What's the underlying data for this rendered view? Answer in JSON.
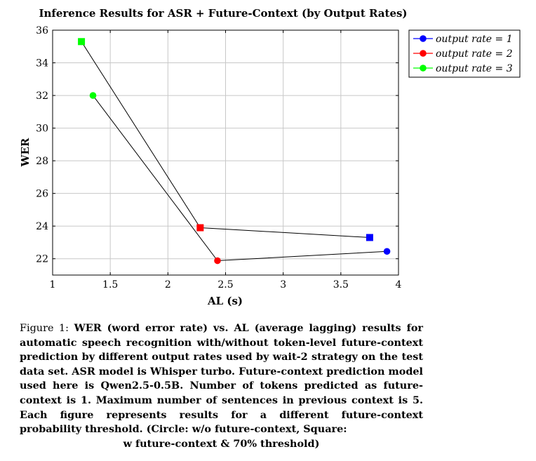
{
  "chart_data": {
    "type": "scatter",
    "title": "Inference Results for ASR + Future-Context (by Output Rates)",
    "xlabel": "AL (s)",
    "ylabel": "WER",
    "xlim": [
      1,
      4
    ],
    "ylim": [
      21,
      36
    ],
    "xticks": [
      1,
      1.5,
      2,
      2.5,
      3,
      3.5,
      4
    ],
    "xtick_labels": [
      "1",
      "1.5",
      "2",
      "2.5",
      "3",
      "3.5",
      "4"
    ],
    "yticks": [
      22,
      24,
      26,
      28,
      30,
      32,
      34,
      36
    ],
    "ytick_labels": [
      "22",
      "24",
      "26",
      "28",
      "30",
      "32",
      "34",
      "36"
    ],
    "grid": true,
    "legend_position": "outside-top-right",
    "series": [
      {
        "name": "output rate = 1",
        "color": "#0000ff",
        "circle": {
          "x": 3.9,
          "y": 22.45
        },
        "square": {
          "x": 3.75,
          "y": 23.3
        }
      },
      {
        "name": "output rate = 2",
        "color": "#ff0000",
        "circle": {
          "x": 2.43,
          "y": 21.88
        },
        "square": {
          "x": 2.28,
          "y": 23.9
        }
      },
      {
        "name": "output rate = 3",
        "color": "#00ff00",
        "circle": {
          "x": 1.35,
          "y": 32.0
        },
        "square": {
          "x": 1.25,
          "y": 35.3
        }
      }
    ],
    "lines": [
      {
        "name": "circle-line",
        "points": [
          [
            1.35,
            32.0
          ],
          [
            2.43,
            21.88
          ],
          [
            3.9,
            22.45
          ]
        ]
      },
      {
        "name": "square-line",
        "points": [
          [
            1.25,
            35.3
          ],
          [
            2.28,
            23.9
          ],
          [
            3.75,
            23.3
          ]
        ]
      }
    ]
  },
  "caption": {
    "lead": "Figure 1:",
    "body": "WER (word error rate) vs. AL (average lagging) results for automatic speech recognition with/without token-level future-context prediction by different output rates used by wait-2 strategy on the test data set. ASR model is Whisper turbo. Future-context prediction model used here is Qwen2.5-0.5B. Number of tokens predicted as future-context is 1. Maximum number of sentences in previous context is 5. Each figure represents results for a different future-context probability threshold. (Circle: w/o future-context, Square:",
    "last_line": "w future-context & 70% threshold)"
  }
}
